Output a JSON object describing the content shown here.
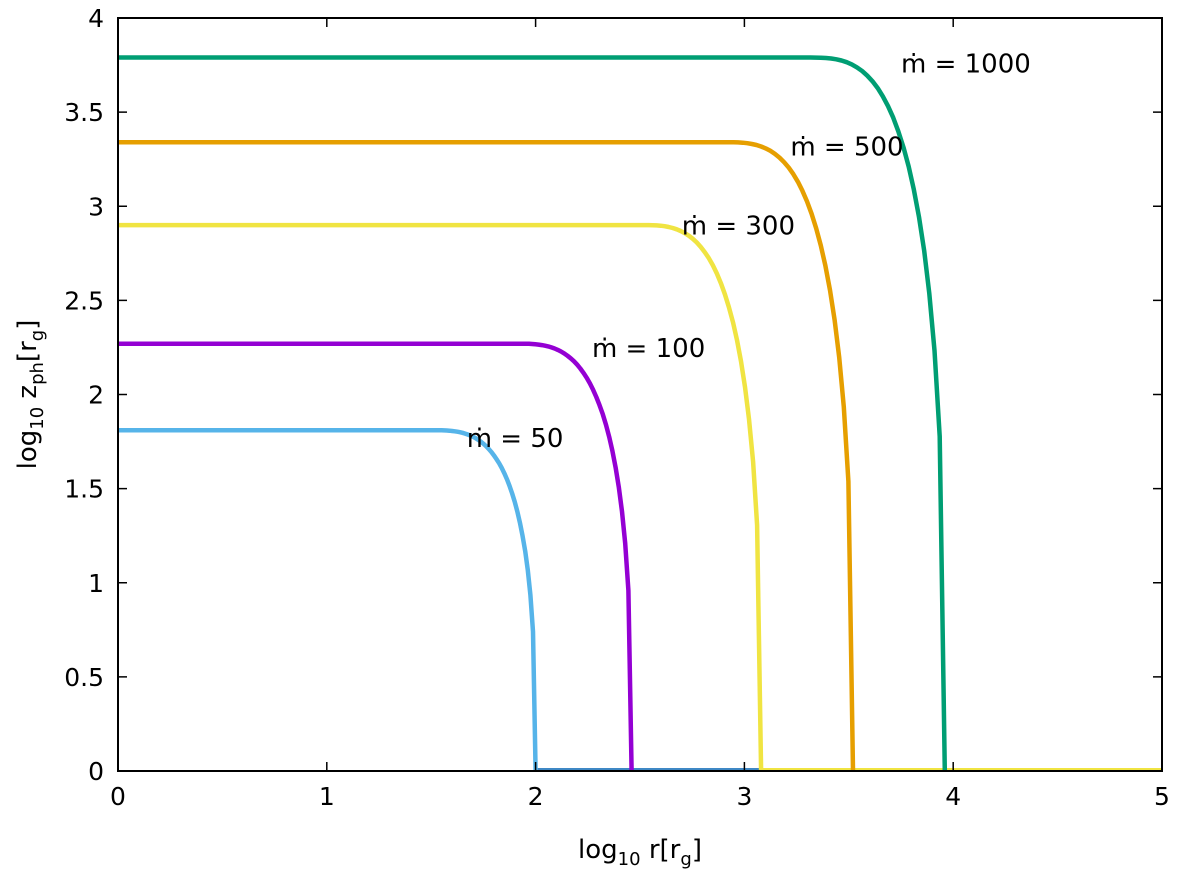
{
  "chart_data": {
    "type": "line",
    "title": "",
    "xlabel": "log₁₀ r[r_g]",
    "xlabel_parts": {
      "base": "log",
      "sub1": "10",
      "main": " r[r",
      "sub2": "g",
      "end": "]"
    },
    "ylabel": "log₁₀ z_ph[r_g]",
    "ylabel_parts": {
      "base": "log",
      "sub1": "10",
      "main": " z",
      "sub2": "ph",
      "mid": "[r",
      "sub3": "g",
      "end": "]"
    },
    "xlim": [
      0,
      5
    ],
    "ylim": [
      0,
      4
    ],
    "xticks": [
      0,
      1,
      2,
      3,
      4,
      5
    ],
    "xtick_labels": [
      "0",
      "1",
      "2",
      "3",
      "4",
      "5"
    ],
    "yticks": [
      0,
      0.5,
      1,
      1.5,
      2,
      2.5,
      3,
      3.5,
      4
    ],
    "ytick_labels": [
      "0",
      "0.5",
      "1",
      "1.5",
      "2",
      "2.5",
      "3",
      "3.5",
      "4"
    ],
    "grid": false,
    "legend": "none",
    "series": [
      {
        "label": "ṁ = 50",
        "color": "#56b4e9",
        "plateau": 1.81,
        "edge": 2.0,
        "knee_r": 1.5,
        "label_x": 1.67,
        "label_y": 1.72
      },
      {
        "label": "ṁ = 100",
        "color": "#9400d3",
        "plateau": 2.27,
        "edge": 2.46,
        "knee_r": 1.9,
        "label_x": 2.27,
        "label_y": 2.2
      },
      {
        "label": "ṁ = 300",
        "color": "#f0e442",
        "plateau": 2.9,
        "edge": 3.08,
        "knee_r": 2.5,
        "label_x": 2.7,
        "label_y": 2.85
      },
      {
        "label": "ṁ = 500",
        "color": "#e69f00",
        "plateau": 3.34,
        "edge": 3.52,
        "knee_r": 2.9,
        "label_x": 3.22,
        "label_y": 3.27
      },
      {
        "label": "ṁ = 1000",
        "color": "#009e73",
        "plateau": 3.79,
        "edge": 3.96,
        "knee_r": 3.3,
        "label_x": 3.75,
        "label_y": 3.71
      }
    ]
  }
}
